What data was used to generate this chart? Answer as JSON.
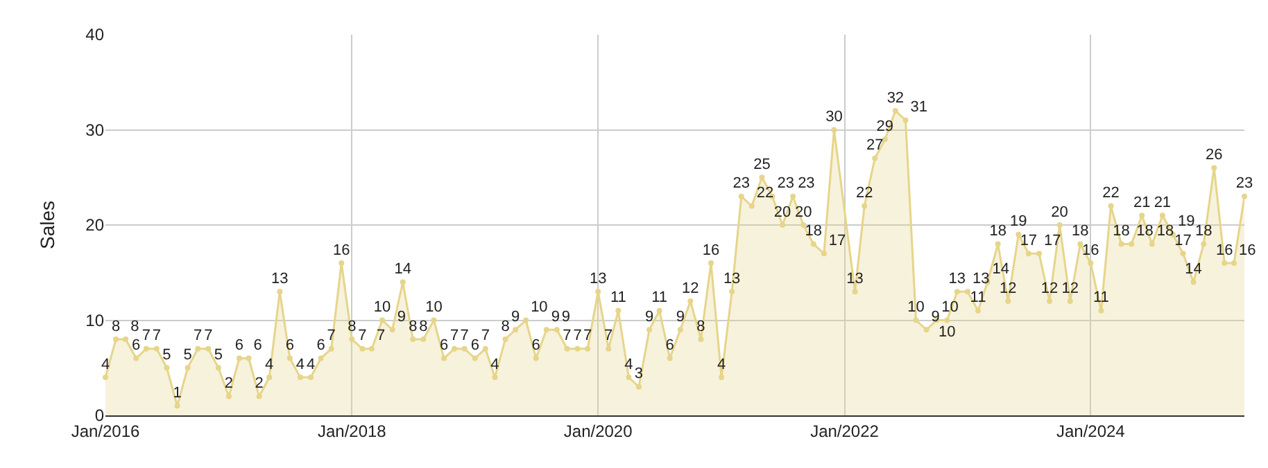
{
  "chart_data": {
    "type": "area",
    "ylabel": "Sales",
    "x": [
      "2016-01",
      "2016-02",
      "2016-03",
      "2016-04",
      "2016-05",
      "2016-06",
      "2016-07",
      "2016-08",
      "2016-09",
      "2016-10",
      "2016-11",
      "2016-12",
      "2017-01",
      "2017-02",
      "2017-03",
      "2017-04",
      "2017-05",
      "2017-06",
      "2017-07",
      "2017-08",
      "2017-09",
      "2017-10",
      "2017-11",
      "2017-12",
      "2018-01",
      "2018-02",
      "2018-03",
      "2018-04",
      "2018-05",
      "2018-06",
      "2018-07",
      "2018-08",
      "2018-09",
      "2018-10",
      "2018-11",
      "2018-12",
      "2019-01",
      "2019-02",
      "2019-03",
      "2019-04",
      "2019-05",
      "2019-06",
      "2019-07",
      "2019-08",
      "2019-09",
      "2019-10",
      "2019-11",
      "2019-12",
      "2020-01",
      "2020-02",
      "2020-03",
      "2020-04",
      "2020-05",
      "2020-06",
      "2020-07",
      "2020-08",
      "2020-09",
      "2020-10",
      "2020-11",
      "2020-12",
      "2021-01",
      "2021-02",
      "2021-03",
      "2021-04",
      "2021-05",
      "2021-06",
      "2021-07",
      "2021-08",
      "2021-09",
      "2021-10",
      "2021-11",
      "2021-12",
      "2022-02",
      "2022-03",
      "2022-04",
      "2022-05",
      "2022-06",
      "2022-07",
      "2022-08",
      "2022-09",
      "2022-10",
      "2022-11",
      "2022-12",
      "2023-01",
      "2023-02",
      "2023-03",
      "2023-04",
      "2023-05",
      "2023-06",
      "2023-07",
      "2023-08",
      "2023-09",
      "2023-10",
      "2023-11",
      "2023-12",
      "2024-01",
      "2024-02",
      "2024-03",
      "2024-04",
      "2024-05",
      "2024-06",
      "2024-07",
      "2024-08",
      "2024-09",
      "2024-10",
      "2024-11",
      "2024-12",
      "2025-01",
      "2025-02",
      "2025-03",
      "2025-04"
    ],
    "series": [
      {
        "color": "#e6d58a",
        "values": [
          4,
          8,
          8,
          6,
          7,
          7,
          5,
          1,
          5,
          7,
          7,
          5,
          2,
          6,
          6,
          2,
          4,
          13,
          6,
          4,
          4,
          6,
          7,
          16,
          8,
          7,
          7,
          10,
          9,
          14,
          8,
          8,
          10,
          6,
          7,
          7,
          6,
          7,
          4,
          8,
          9,
          10,
          6,
          9,
          9,
          7,
          7,
          7,
          13,
          7,
          11,
          4,
          3,
          9,
          11,
          6,
          9,
          12,
          8,
          16,
          4,
          13,
          23,
          22,
          25,
          23,
          20,
          23,
          20,
          18,
          17,
          30,
          13,
          22,
          27,
          29,
          32,
          31,
          10,
          9,
          10,
          10,
          13,
          13,
          11,
          14,
          18,
          12,
          19,
          17,
          17,
          12,
          20,
          12,
          18,
          16,
          11,
          22,
          18,
          18,
          21,
          18,
          21,
          19,
          17,
          14,
          18,
          26,
          16,
          16,
          23
        ]
      }
    ],
    "xlim": [
      "2016-01",
      "2025-04"
    ],
    "xticks": [
      {
        "value": "2016-01",
        "label": "Jan/2016"
      },
      {
        "value": "2018-01",
        "label": "Jan/2018"
      },
      {
        "value": "2020-01",
        "label": "Jan/2020"
      },
      {
        "value": "2022-01",
        "label": "Jan/2022"
      },
      {
        "value": "2024-01",
        "label": "Jan/2024"
      }
    ],
    "ylim": [
      0,
      40
    ],
    "yticks": [
      0,
      10,
      20,
      30,
      40
    ],
    "grid": true,
    "marker": "circle",
    "data_labels": true
  }
}
